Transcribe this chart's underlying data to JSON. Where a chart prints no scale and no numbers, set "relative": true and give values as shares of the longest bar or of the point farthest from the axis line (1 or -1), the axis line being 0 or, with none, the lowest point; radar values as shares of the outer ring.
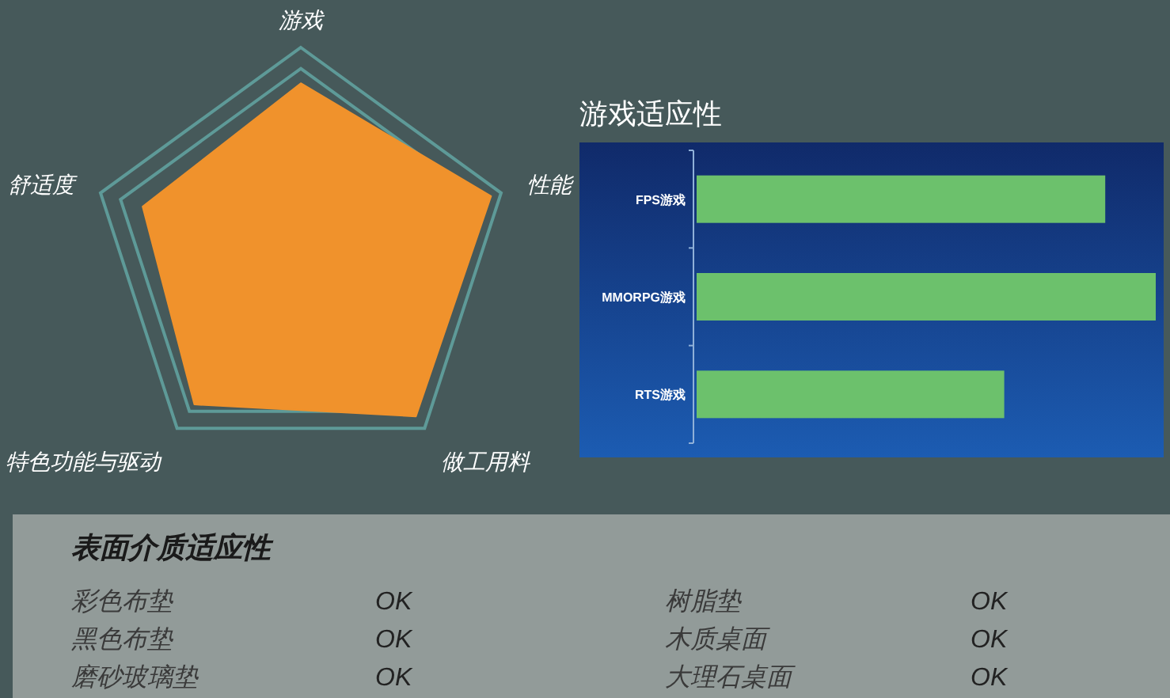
{
  "chart_data": [
    {
      "type": "radar",
      "relative": true,
      "grid": true,
      "categories": [
        "游戏",
        "性能",
        "做工用料",
        "特色功能与驱动",
        "舒适度"
      ],
      "series": [
        {
          "color": "#f0922c",
          "values": [
            0.83,
            0.95,
            0.93,
            0.86,
            0.79
          ]
        }
      ]
    },
    {
      "type": "bar",
      "title": "游戏适应性",
      "orientation": "horizontal",
      "relative": true,
      "categories": [
        "FPS游戏",
        "MMORPG游戏",
        "RTS游戏"
      ],
      "values": [
        0.89,
        1,
        0.67
      ],
      "color": "#6cc16c"
    },
    {
      "type": "other",
      "title": "表面介质适应性",
      "annotations": [
        "彩色布垫",
        "OK",
        "树脂垫",
        "OK",
        "黑色布垫",
        "OK",
        "木质桌面",
        "OK",
        "磨砂玻璃垫",
        "OK",
        "大理石桌面",
        "OK"
      ]
    }
  ]
}
